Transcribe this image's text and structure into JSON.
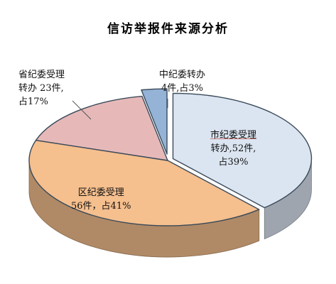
{
  "chart_data": {
    "type": "pie",
    "title": "信访举报件来源分析",
    "slices": [
      {
        "name": "市纪委受理",
        "value": 52,
        "percent": 39,
        "label_lines": [
          "市纪委受理",
          "转办,52件,",
          "占39%"
        ],
        "color": "#dbe5f1"
      },
      {
        "name": "区纪委受理",
        "value": 56,
        "percent": 41,
        "label_lines": [
          "区纪委受理",
          "56件，占41%"
        ],
        "color": "#f5bf8e"
      },
      {
        "name": "省纪委受理",
        "value": 23,
        "percent": 17,
        "label_lines": [
          "省纪委受理",
          "转办 23件,",
          "占17%"
        ],
        "color": "#e6b9b8"
      },
      {
        "name": "中纪委转办",
        "value": 4,
        "percent": 3,
        "label_lines": [
          "中纪委转办",
          "4件,占3%"
        ],
        "color": "#95b3d7"
      }
    ],
    "legend": "none",
    "style": "3d-exploded"
  }
}
